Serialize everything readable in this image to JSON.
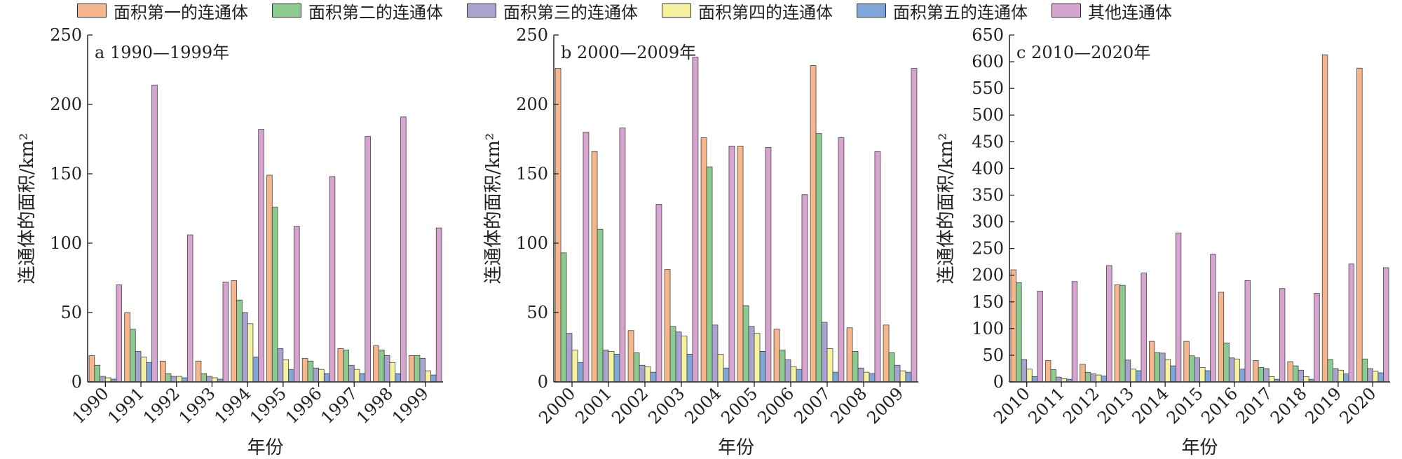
{
  "legend": [
    {
      "label": "面积第一的连通体",
      "color": "#F7B58C"
    },
    {
      "label": "面积第二的连通体",
      "color": "#8CCB8F"
    },
    {
      "label": "面积第三的连通体",
      "color": "#A9A3CF"
    },
    {
      "label": "面积第四的连通体",
      "color": "#F5F2A0"
    },
    {
      "label": "面积第五的连通体",
      "color": "#7FA6D8"
    },
    {
      "label": "其他连通体",
      "color": "#D7A3D1"
    }
  ],
  "chart_data": [
    {
      "type": "bar",
      "title": "a 1990—1999年",
      "xlabel": "年份",
      "ylabel": "连通体的面积/km²",
      "ylim": [
        0,
        250
      ],
      "yticks": [
        0,
        50,
        100,
        150,
        200,
        250
      ],
      "categories": [
        "1990",
        "1991",
        "1992",
        "1993",
        "1994",
        "1995",
        "1996",
        "1997",
        "1998",
        "1999"
      ],
      "series": [
        {
          "name": "面积第一的连通体",
          "values": [
            19,
            50,
            15,
            15,
            73,
            149,
            17,
            24,
            26,
            19
          ]
        },
        {
          "name": "面积第二的连通体",
          "values": [
            12,
            38,
            6,
            6,
            59,
            126,
            15,
            23,
            23,
            19
          ]
        },
        {
          "name": "面积第三的连通体",
          "values": [
            4,
            22,
            4,
            4,
            50,
            24,
            10,
            12,
            19,
            17
          ]
        },
        {
          "name": "面积第四的连通体",
          "values": [
            3,
            18,
            4,
            3,
            42,
            16,
            9,
            9,
            14,
            8
          ]
        },
        {
          "name": "面积第五的连通体",
          "values": [
            2,
            14,
            3,
            2,
            18,
            9,
            6,
            6,
            6,
            5
          ]
        },
        {
          "name": "其他连通体",
          "values": [
            70,
            214,
            106,
            72,
            182,
            112,
            148,
            177,
            191,
            111
          ]
        }
      ]
    },
    {
      "type": "bar",
      "title": "b 2000—2009年",
      "xlabel": "年份",
      "ylabel": "连通体的面积/km²",
      "ylim": [
        0,
        250
      ],
      "yticks": [
        0,
        50,
        100,
        150,
        200,
        250
      ],
      "categories": [
        "2000",
        "2001",
        "2002",
        "2003",
        "2004",
        "2005",
        "2006",
        "2007",
        "2008",
        "2009"
      ],
      "series": [
        {
          "name": "面积第一的连通体",
          "values": [
            226,
            166,
            37,
            81,
            176,
            170,
            38,
            228,
            39,
            41
          ]
        },
        {
          "name": "面积第二的连通体",
          "values": [
            93,
            110,
            21,
            40,
            155,
            55,
            23,
            179,
            22,
            21
          ]
        },
        {
          "name": "面积第三的连通体",
          "values": [
            35,
            23,
            12,
            36,
            41,
            40,
            16,
            43,
            10,
            12
          ]
        },
        {
          "name": "面积第四的连通体",
          "values": [
            23,
            22,
            11,
            33,
            20,
            35,
            11,
            24,
            7,
            8
          ]
        },
        {
          "name": "面积第五的连通体",
          "values": [
            14,
            20,
            7,
            20,
            10,
            22,
            9,
            7,
            6,
            7
          ]
        },
        {
          "name": "其他连通体",
          "values": [
            180,
            183,
            128,
            234,
            170,
            169,
            135,
            176,
            166,
            226
          ]
        }
      ]
    },
    {
      "type": "bar",
      "title": "c 2010—2020年",
      "xlabel": "年份",
      "ylabel": "连通体的面积/km²",
      "ylim": [
        0,
        650
      ],
      "yticks": [
        0,
        50,
        100,
        150,
        200,
        250,
        300,
        350,
        400,
        450,
        500,
        550,
        600,
        650
      ],
      "categories": [
        "2010",
        "2011",
        "2012",
        "2013",
        "2014",
        "2015",
        "2016",
        "2017",
        "2018",
        "2019",
        "2020"
      ],
      "series": [
        {
          "name": "面积第一的连通体",
          "values": [
            210,
            40,
            33,
            182,
            76,
            76,
            168,
            40,
            38,
            613,
            588
          ]
        },
        {
          "name": "面积第二的连通体",
          "values": [
            186,
            23,
            18,
            181,
            55,
            49,
            73,
            27,
            30,
            42,
            43
          ]
        },
        {
          "name": "面积第三的连通体",
          "values": [
            42,
            9,
            15,
            41,
            54,
            45,
            45,
            25,
            22,
            25,
            25
          ]
        },
        {
          "name": "面积第四的连通体",
          "values": [
            24,
            6,
            13,
            24,
            42,
            27,
            43,
            10,
            10,
            22,
            20
          ]
        },
        {
          "name": "面积第五的连通体",
          "values": [
            10,
            5,
            11,
            21,
            30,
            21,
            24,
            5,
            5,
            15,
            17
          ]
        },
        {
          "name": "其他连通体",
          "values": [
            170,
            188,
            218,
            204,
            279,
            239,
            190,
            175,
            166,
            221,
            214
          ]
        }
      ]
    }
  ]
}
